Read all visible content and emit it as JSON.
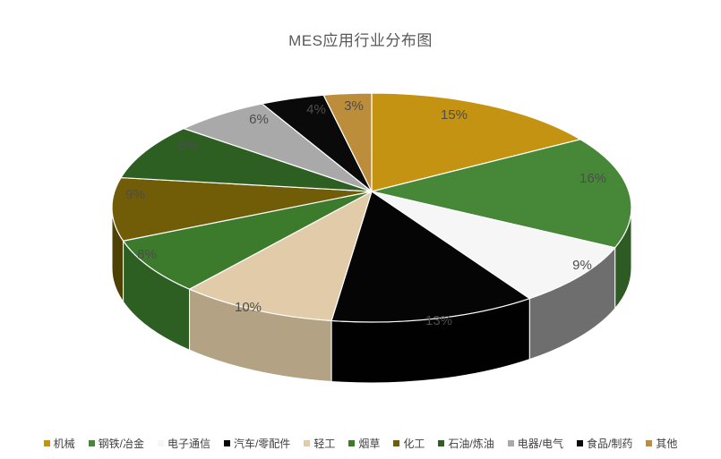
{
  "title": "MES应用行业分布图",
  "chart_data": {
    "type": "pie",
    "style": "3d",
    "title": "MES应用行业分布图",
    "unit": "%",
    "start_angle_deg": -90,
    "direction": "clockwise",
    "legend_position": "bottom",
    "slices": [
      {
        "label": "机械",
        "value": 15,
        "data_label": "15%",
        "color": "#C59312"
      },
      {
        "label": "钢铁/冶金",
        "value": 16,
        "data_label": "16%",
        "color": "#478838",
        "side_color": "#2E5A23"
      },
      {
        "label": "电子通信",
        "value": 9,
        "data_label": "9%",
        "color": "#F6F6F6",
        "side_color": "#6E6E6E"
      },
      {
        "label": "汽车/零配件",
        "value": 13,
        "data_label": "13%",
        "color": "#050505",
        "side_color": "#010101"
      },
      {
        "label": "轻工",
        "value": 10,
        "data_label": "10%",
        "color": "#E2CBA8",
        "side_color": "#B3A284"
      },
      {
        "label": "烟草",
        "value": 8,
        "data_label": "8%",
        "color": "#3C7A2C",
        "side_color": "#2C5F21"
      },
      {
        "label": "化工",
        "value": 9,
        "data_label": "9%",
        "color": "#715D07",
        "side_color": "#4F4105"
      },
      {
        "label": "石油/炼油",
        "value": 8,
        "data_label": "8%",
        "color": "#2D5E22"
      },
      {
        "label": "电器/电气",
        "value": 6,
        "data_label": "6%",
        "color": "#A9A9A9"
      },
      {
        "label": "食品/制药",
        "value": 4,
        "data_label": "4%",
        "color": "#0A0A0A"
      },
      {
        "label": "其他",
        "value": 3,
        "data_label": "3%",
        "color": "#BC8D3B"
      }
    ],
    "label_color": "#4d4d4d",
    "title_color": "#595959",
    "background": "#ffffff"
  }
}
